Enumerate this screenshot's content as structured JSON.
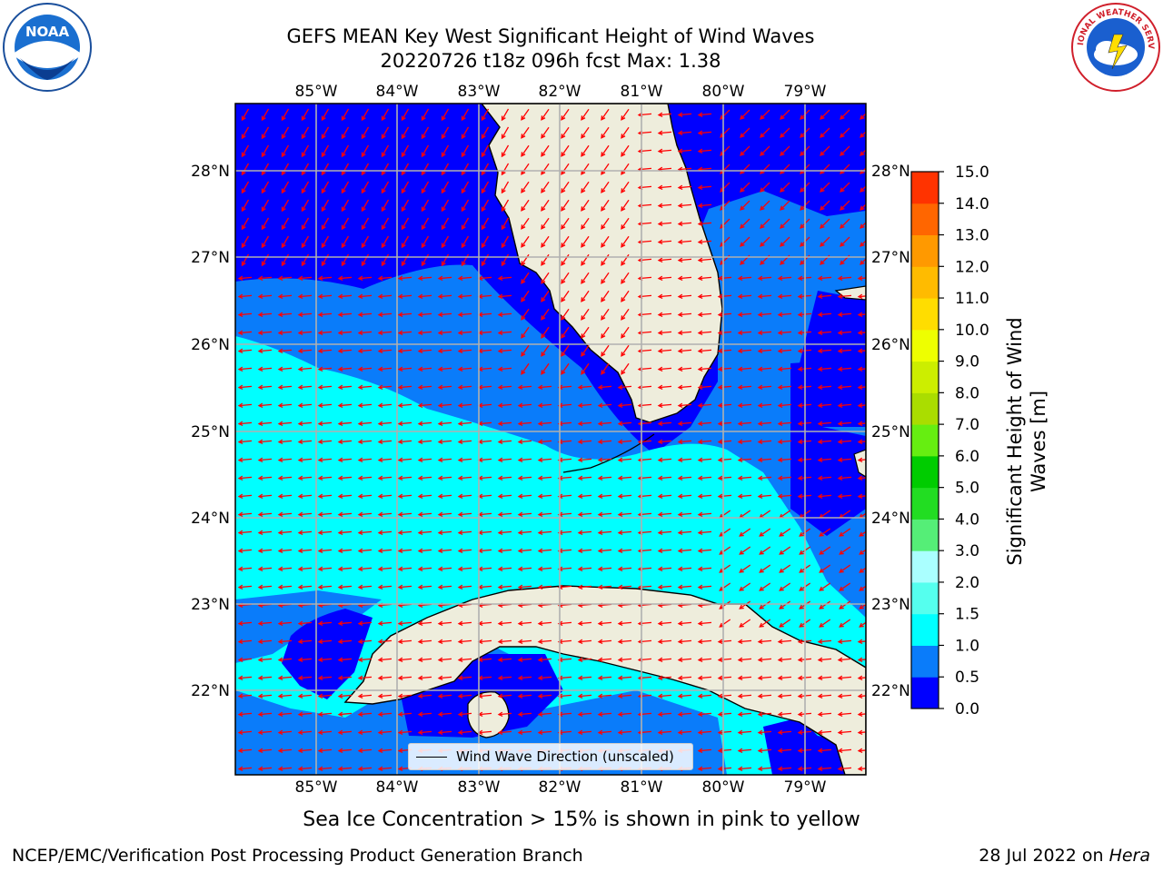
{
  "title": {
    "line1": "GEFS MEAN Key West Significant Height of Wind Waves",
    "line2": "20220726 t18z 096h fcst   Max: 1.38"
  },
  "map": {
    "lon_labels": [
      "85°W",
      "84°W",
      "83°W",
      "82°W",
      "81°W",
      "80°W",
      "79°W"
    ],
    "lat_labels": [
      "28°N",
      "27°N",
      "26°N",
      "25°N",
      "24°N",
      "23°N",
      "22°N"
    ],
    "legend_label": "Wind Wave Direction (unscaled)",
    "colors": {
      "ocean_deep": "#0000ff",
      "ocean_mid": "#0a7cfa",
      "ocean_light": "#00ffff",
      "land": "#eeeddc",
      "arrows": "#ff0000",
      "grid": "#b0b0b0"
    }
  },
  "colorbar": {
    "label": "Significant Height of Wind Waves [m]",
    "label_line1": "Significant Height of Wind",
    "label_line2": "Waves [m]",
    "ticks": [
      "0.0",
      "0.5",
      "1.0",
      "1.5",
      "2.0",
      "3.0",
      "4.0",
      "5.0",
      "6.0",
      "7.0",
      "8.0",
      "9.0",
      "10.0",
      "11.0",
      "12.0",
      "13.0",
      "14.0",
      "15.0"
    ],
    "colors": [
      "#0000ff",
      "#0a7cfa",
      "#00ffff",
      "#55ffee",
      "#aaffff",
      "#55ee77",
      "#22dd22",
      "#00cc00",
      "#66ee11",
      "#aadd00",
      "#ccee00",
      "#eeff00",
      "#ffdd00",
      "#ffbb00",
      "#ff9900",
      "#ff6600",
      "#ff3300"
    ]
  },
  "subtitle": "Sea Ice Concentration > 15% is shown in pink to yellow",
  "footer": {
    "left": "NCEP/EMC/Verification Post Processing Product Generation Branch",
    "right_date": "28 Jul 2022 on ",
    "right_host": "Hera"
  },
  "logos": {
    "noaa": "NOAA",
    "nws": "NATIONAL WEATHER SERVICE"
  }
}
